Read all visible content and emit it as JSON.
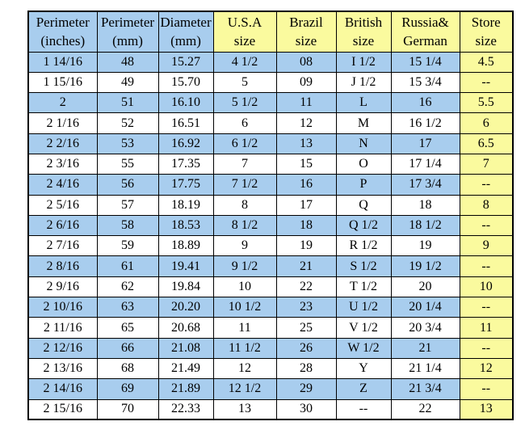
{
  "colors": {
    "row_blue": "#a8cdee",
    "store_yellow": "#fafa9e",
    "border": "#000000",
    "text": "#000000"
  },
  "table": {
    "columns": [
      {
        "line1": "Perimeter",
        "line2": "(inches)",
        "group": "blue"
      },
      {
        "line1": "Perimeter",
        "line2": "(mm)",
        "group": "blue"
      },
      {
        "line1": "Diameter",
        "line2": "(mm)",
        "group": "blue"
      },
      {
        "line1": "U.S.A",
        "line2": "size",
        "group": "yellow"
      },
      {
        "line1": "Brazil",
        "line2": "size",
        "group": "yellow"
      },
      {
        "line1": "British",
        "line2": "size",
        "group": "yellow"
      },
      {
        "line1": "Russia&",
        "line2": "German",
        "group": "yellow"
      },
      {
        "line1": "Store",
        "line2": "size",
        "group": "yellow"
      }
    ],
    "rows": [
      [
        "1 14/16",
        "48",
        "15.27",
        "4 1/2",
        "08",
        "I 1/2",
        "15 1/4",
        "4.5"
      ],
      [
        "1 15/16",
        "49",
        "15.70",
        "5",
        "09",
        "J 1/2",
        "15 3/4",
        "--"
      ],
      [
        "2",
        "51",
        "16.10",
        "5 1/2",
        "11",
        "L",
        "16",
        "5.5"
      ],
      [
        "2 1/16",
        "52",
        "16.51",
        "6",
        "12",
        "M",
        "16 1/2",
        "6"
      ],
      [
        "2 2/16",
        "53",
        "16.92",
        "6 1/2",
        "13",
        "N",
        "17",
        "6.5"
      ],
      [
        "2 3/16",
        "55",
        "17.35",
        "7",
        "15",
        "O",
        "17 1/4",
        "7"
      ],
      [
        "2 4/16",
        "56",
        "17.75",
        "7 1/2",
        "16",
        "P",
        "17 3/4",
        "--"
      ],
      [
        "2 5/16",
        "57",
        "18.19",
        "8",
        "17",
        "Q",
        "18",
        "8"
      ],
      [
        "2 6/16",
        "58",
        "18.53",
        "8 1/2",
        "18",
        "Q 1/2",
        "18 1/2",
        "--"
      ],
      [
        "2 7/16",
        "59",
        "18.89",
        "9",
        "19",
        "R 1/2",
        "19",
        "9"
      ],
      [
        "2 8/16",
        "61",
        "19.41",
        "9 1/2",
        "21",
        "S 1/2",
        "19 1/2",
        "--"
      ],
      [
        "2 9/16",
        "62",
        "19.84",
        "10",
        "22",
        "T 1/2",
        "20",
        "10"
      ],
      [
        "2 10/16",
        "63",
        "20.20",
        "10 1/2",
        "23",
        "U 1/2",
        "20 1/4",
        "--"
      ],
      [
        "2 11/16",
        "65",
        "20.68",
        "11",
        "25",
        "V 1/2",
        "20 3/4",
        "11"
      ],
      [
        "2 12/16",
        "66",
        "21.08",
        "11 1/2",
        "26",
        "W 1/2",
        "21",
        "--"
      ],
      [
        "2 13/16",
        "68",
        "21.49",
        "12",
        "28",
        "Y",
        "21 1/4",
        "12"
      ],
      [
        "2 14/16",
        "69",
        "21.89",
        "12 1/2",
        "29",
        "Z",
        "21 3/4",
        "--"
      ],
      [
        "2 15/16",
        "70",
        "22.33",
        "13",
        "30",
        "--",
        "22",
        "13"
      ]
    ],
    "row_shading": [
      "blue",
      "white",
      "blue",
      "white",
      "blue",
      "white",
      "blue",
      "white",
      "blue",
      "white",
      "blue",
      "white",
      "blue",
      "white",
      "blue",
      "white",
      "blue",
      "white"
    ]
  }
}
